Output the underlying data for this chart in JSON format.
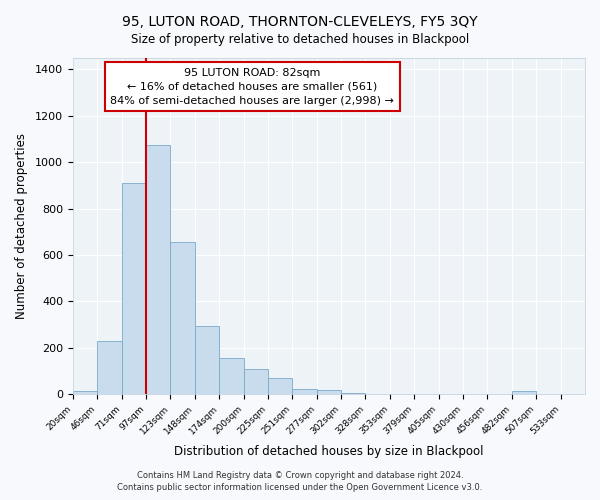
{
  "title": "95, LUTON ROAD, THORNTON-CLEVELEYS, FY5 3QY",
  "subtitle": "Size of property relative to detached houses in Blackpool",
  "xlabel": "Distribution of detached houses by size in Blackpool",
  "ylabel": "Number of detached properties",
  "bar_color": "#c8dcee",
  "bar_edge_color": "#7aaac8",
  "background_color": "#eef3f8",
  "grid_color": "#ffffff",
  "fig_background": "#f7f9fc",
  "tick_labels": [
    "20sqm",
    "46sqm",
    "71sqm",
    "97sqm",
    "123sqm",
    "148sqm",
    "174sqm",
    "200sqm",
    "225sqm",
    "251sqm",
    "277sqm",
    "302sqm",
    "328sqm",
    "353sqm",
    "379sqm",
    "405sqm",
    "430sqm",
    "456sqm",
    "482sqm",
    "507sqm",
    "533sqm"
  ],
  "bar_values": [
    15,
    228,
    910,
    1075,
    655,
    293,
    158,
    108,
    70,
    25,
    18,
    8,
    0,
    0,
    0,
    0,
    0,
    0,
    15,
    0,
    0
  ],
  "ylim": [
    0,
    1450
  ],
  "yticks": [
    0,
    200,
    400,
    600,
    800,
    1000,
    1200,
    1400
  ],
  "vline_x_index": 3,
  "annotation_title": "95 LUTON ROAD: 82sqm",
  "annotation_line1": "← 16% of detached houses are smaller (561)",
  "annotation_line2": "84% of semi-detached houses are larger (2,998) →",
  "vline_color": "#cc0000",
  "annotation_box_edge": "#cc0000",
  "footer_line1": "Contains HM Land Registry data © Crown copyright and database right 2024.",
  "footer_line2": "Contains public sector information licensed under the Open Government Licence v3.0."
}
